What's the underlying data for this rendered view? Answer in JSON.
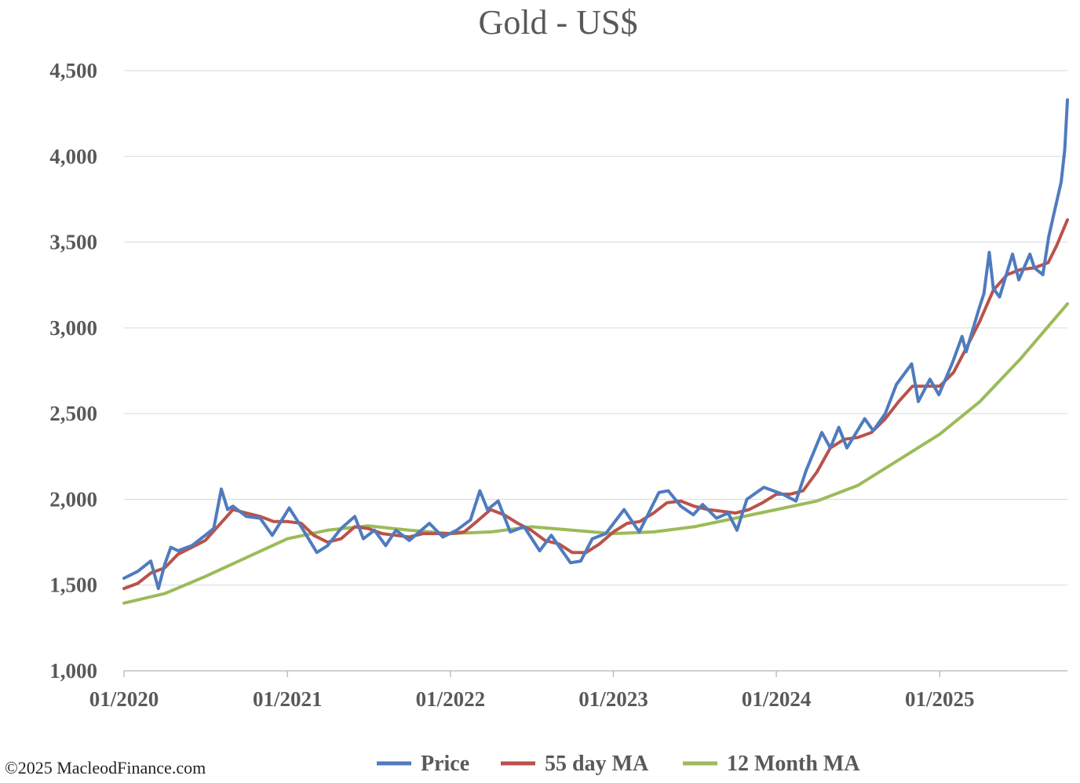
{
  "chart_data": {
    "type": "line",
    "title": "Gold - US$",
    "xlabel": "",
    "ylabel": "",
    "ylim": [
      1000,
      4500
    ],
    "y_ticks": [
      "1,000",
      "1,500",
      "2,000",
      "2,500",
      "3,000",
      "3,500",
      "4,000",
      "4,500"
    ],
    "y_tick_values": [
      1000,
      1500,
      2000,
      2500,
      3000,
      3500,
      4000,
      4500
    ],
    "x_ticks": [
      "01/2020",
      "01/2021",
      "01/2022",
      "01/2023",
      "01/2024",
      "01/2025"
    ],
    "x_tick_dates": [
      "2020-01-01",
      "2021-01-01",
      "2022-01-01",
      "2023-01-01",
      "2024-01-01",
      "2025-01-01"
    ],
    "xlim": [
      "2020-01-01",
      "2025-10-14"
    ],
    "grid": "horizontal",
    "legend_position": "bottom",
    "series": [
      {
        "name": "Price",
        "color": "#4f7bbe",
        "points": [
          [
            "2020-01-01",
            1540
          ],
          [
            "2020-02-01",
            1580
          ],
          [
            "2020-03-01",
            1640
          ],
          [
            "2020-03-18",
            1480
          ],
          [
            "2020-04-01",
            1620
          ],
          [
            "2020-04-15",
            1720
          ],
          [
            "2020-05-01",
            1700
          ],
          [
            "2020-06-01",
            1730
          ],
          [
            "2020-07-01",
            1790
          ],
          [
            "2020-07-20",
            1830
          ],
          [
            "2020-08-06",
            2060
          ],
          [
            "2020-08-20",
            1940
          ],
          [
            "2020-09-01",
            1960
          ],
          [
            "2020-10-01",
            1900
          ],
          [
            "2020-11-01",
            1890
          ],
          [
            "2020-11-28",
            1790
          ],
          [
            "2020-12-15",
            1860
          ],
          [
            "2021-01-05",
            1950
          ],
          [
            "2021-02-01",
            1840
          ],
          [
            "2021-03-08",
            1690
          ],
          [
            "2021-04-01",
            1730
          ],
          [
            "2021-05-01",
            1830
          ],
          [
            "2021-06-01",
            1900
          ],
          [
            "2021-06-20",
            1770
          ],
          [
            "2021-07-15",
            1820
          ],
          [
            "2021-08-09",
            1730
          ],
          [
            "2021-09-01",
            1820
          ],
          [
            "2021-10-01",
            1760
          ],
          [
            "2021-11-15",
            1860
          ],
          [
            "2021-12-15",
            1780
          ],
          [
            "2022-01-15",
            1820
          ],
          [
            "2022-02-15",
            1880
          ],
          [
            "2022-03-08",
            2050
          ],
          [
            "2022-03-25",
            1940
          ],
          [
            "2022-04-18",
            1990
          ],
          [
            "2022-05-15",
            1810
          ],
          [
            "2022-06-15",
            1840
          ],
          [
            "2022-07-20",
            1700
          ],
          [
            "2022-08-15",
            1790
          ],
          [
            "2022-09-27",
            1630
          ],
          [
            "2022-10-20",
            1640
          ],
          [
            "2022-11-15",
            1770
          ],
          [
            "2022-12-15",
            1800
          ],
          [
            "2023-01-25",
            1940
          ],
          [
            "2023-02-28",
            1810
          ],
          [
            "2023-04-13",
            2040
          ],
          [
            "2023-05-04",
            2050
          ],
          [
            "2023-06-01",
            1960
          ],
          [
            "2023-06-29",
            1910
          ],
          [
            "2023-07-20",
            1970
          ],
          [
            "2023-08-20",
            1890
          ],
          [
            "2023-09-15",
            1920
          ],
          [
            "2023-10-05",
            1820
          ],
          [
            "2023-10-27",
            2000
          ],
          [
            "2023-12-04",
            2070
          ],
          [
            "2024-01-15",
            2030
          ],
          [
            "2024-02-14",
            1990
          ],
          [
            "2024-03-08",
            2170
          ],
          [
            "2024-04-12",
            2390
          ],
          [
            "2024-05-01",
            2300
          ],
          [
            "2024-05-20",
            2420
          ],
          [
            "2024-06-07",
            2300
          ],
          [
            "2024-07-17",
            2470
          ],
          [
            "2024-08-05",
            2400
          ],
          [
            "2024-09-01",
            2500
          ],
          [
            "2024-09-26",
            2670
          ],
          [
            "2024-10-30",
            2790
          ],
          [
            "2024-11-14",
            2570
          ],
          [
            "2024-12-10",
            2700
          ],
          [
            "2024-12-30",
            2610
          ],
          [
            "2025-01-30",
            2800
          ],
          [
            "2025-02-20",
            2950
          ],
          [
            "2025-03-01",
            2860
          ],
          [
            "2025-03-31",
            3120
          ],
          [
            "2025-04-10",
            3200
          ],
          [
            "2025-04-22",
            3440
          ],
          [
            "2025-05-01",
            3230
          ],
          [
            "2025-05-15",
            3180
          ],
          [
            "2025-06-13",
            3430
          ],
          [
            "2025-06-27",
            3280
          ],
          [
            "2025-07-22",
            3430
          ],
          [
            "2025-08-01",
            3350
          ],
          [
            "2025-08-20",
            3310
          ],
          [
            "2025-09-02",
            3530
          ],
          [
            "2025-09-15",
            3680
          ],
          [
            "2025-09-30",
            3850
          ],
          [
            "2025-10-08",
            4040
          ],
          [
            "2025-10-14",
            4330
          ]
        ]
      },
      {
        "name": "55 day MA",
        "color": "#b9524b",
        "points": [
          [
            "2020-01-01",
            1480
          ],
          [
            "2020-02-01",
            1510
          ],
          [
            "2020-03-01",
            1570
          ],
          [
            "2020-04-01",
            1600
          ],
          [
            "2020-05-01",
            1680
          ],
          [
            "2020-06-01",
            1720
          ],
          [
            "2020-07-01",
            1760
          ],
          [
            "2020-08-01",
            1850
          ],
          [
            "2020-09-01",
            1940
          ],
          [
            "2020-10-01",
            1920
          ],
          [
            "2020-11-01",
            1900
          ],
          [
            "2020-12-01",
            1870
          ],
          [
            "2021-01-01",
            1870
          ],
          [
            "2021-02-01",
            1860
          ],
          [
            "2021-03-01",
            1790
          ],
          [
            "2021-04-01",
            1750
          ],
          [
            "2021-05-01",
            1770
          ],
          [
            "2021-06-01",
            1840
          ],
          [
            "2021-07-01",
            1830
          ],
          [
            "2021-08-01",
            1800
          ],
          [
            "2021-09-01",
            1790
          ],
          [
            "2021-10-01",
            1780
          ],
          [
            "2021-11-01",
            1800
          ],
          [
            "2021-12-01",
            1800
          ],
          [
            "2022-01-01",
            1800
          ],
          [
            "2022-02-01",
            1810
          ],
          [
            "2022-03-01",
            1870
          ],
          [
            "2022-04-01",
            1940
          ],
          [
            "2022-05-01",
            1910
          ],
          [
            "2022-06-01",
            1860
          ],
          [
            "2022-07-01",
            1820
          ],
          [
            "2022-08-01",
            1760
          ],
          [
            "2022-09-01",
            1740
          ],
          [
            "2022-10-01",
            1690
          ],
          [
            "2022-11-01",
            1690
          ],
          [
            "2022-12-01",
            1740
          ],
          [
            "2023-01-01",
            1810
          ],
          [
            "2023-02-01",
            1860
          ],
          [
            "2023-03-01",
            1870
          ],
          [
            "2023-04-01",
            1920
          ],
          [
            "2023-05-01",
            1980
          ],
          [
            "2023-06-01",
            1990
          ],
          [
            "2023-07-01",
            1960
          ],
          [
            "2023-08-01",
            1940
          ],
          [
            "2023-09-01",
            1930
          ],
          [
            "2023-10-01",
            1920
          ],
          [
            "2023-11-01",
            1940
          ],
          [
            "2023-12-01",
            1980
          ],
          [
            "2024-01-01",
            2030
          ],
          [
            "2024-02-01",
            2030
          ],
          [
            "2024-03-01",
            2050
          ],
          [
            "2024-04-01",
            2160
          ],
          [
            "2024-05-01",
            2300
          ],
          [
            "2024-06-01",
            2350
          ],
          [
            "2024-07-01",
            2360
          ],
          [
            "2024-08-01",
            2390
          ],
          [
            "2024-09-01",
            2470
          ],
          [
            "2024-10-01",
            2570
          ],
          [
            "2024-11-01",
            2660
          ],
          [
            "2024-12-01",
            2660
          ],
          [
            "2025-01-01",
            2660
          ],
          [
            "2025-02-01",
            2740
          ],
          [
            "2025-03-01",
            2880
          ],
          [
            "2025-04-01",
            3040
          ],
          [
            "2025-05-01",
            3220
          ],
          [
            "2025-06-01",
            3310
          ],
          [
            "2025-07-01",
            3340
          ],
          [
            "2025-08-01",
            3350
          ],
          [
            "2025-09-01",
            3380
          ],
          [
            "2025-09-20",
            3480
          ],
          [
            "2025-10-14",
            3630
          ]
        ]
      },
      {
        "name": "12 Month MA",
        "color": "#9bbb59",
        "points": [
          [
            "2020-01-01",
            1395
          ],
          [
            "2020-04-01",
            1450
          ],
          [
            "2020-07-01",
            1550
          ],
          [
            "2020-10-01",
            1660
          ],
          [
            "2021-01-01",
            1770
          ],
          [
            "2021-04-01",
            1820
          ],
          [
            "2021-07-01",
            1845
          ],
          [
            "2021-10-01",
            1820
          ],
          [
            "2022-01-01",
            1800
          ],
          [
            "2022-04-01",
            1810
          ],
          [
            "2022-07-01",
            1840
          ],
          [
            "2022-10-01",
            1820
          ],
          [
            "2023-01-01",
            1800
          ],
          [
            "2023-04-01",
            1810
          ],
          [
            "2023-07-01",
            1840
          ],
          [
            "2023-10-01",
            1890
          ],
          [
            "2024-01-01",
            1940
          ],
          [
            "2024-04-01",
            1990
          ],
          [
            "2024-07-01",
            2080
          ],
          [
            "2024-10-01",
            2230
          ],
          [
            "2025-01-01",
            2380
          ],
          [
            "2025-04-01",
            2570
          ],
          [
            "2025-07-01",
            2820
          ],
          [
            "2025-10-14",
            3140
          ]
        ]
      }
    ]
  },
  "footer": {
    "copyright": "©2025 MacleodFinance.com"
  }
}
